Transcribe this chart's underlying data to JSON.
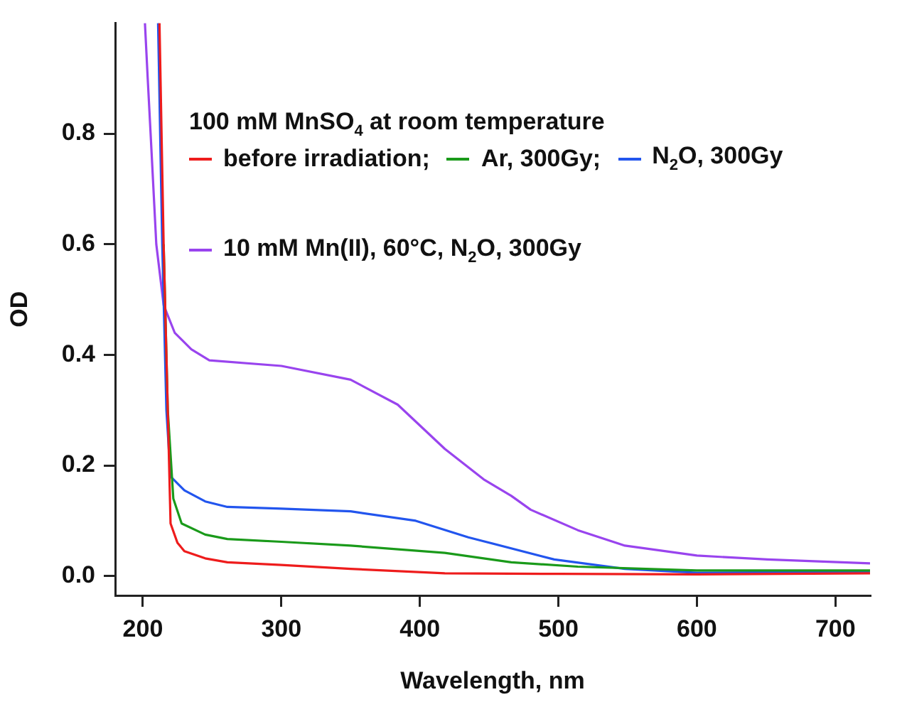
{
  "chart_data": {
    "type": "line",
    "xlabel": "Wavelength, nm",
    "ylabel": "OD",
    "annotations": [
      "100 mM MnSO$_{4}$ at room temperature"
    ],
    "xlim": [
      180,
      725
    ],
    "xticks": [
      200,
      300,
      400,
      500,
      600,
      700
    ],
    "ylim": [
      -0.035,
      1.0
    ],
    "yticks": [
      {
        "value": 0,
        "label": "0.0"
      },
      {
        "value": 0.2,
        "label": "0.2"
      },
      {
        "value": 0.4,
        "label": "0.4"
      },
      {
        "value": 0.6,
        "label": "0.6"
      },
      {
        "value": 0.8,
        "label": "0.8"
      }
    ],
    "legend": "top",
    "grid": false,
    "marker": "none",
    "line_style": "solid",
    "series": [
      {
        "name": "before irradiation;",
        "color": "#ee1c1c",
        "x": [
          212,
          215,
          218,
          220,
          225,
          230,
          245,
          261,
          300,
          350,
          418,
          500,
          600,
          725
        ],
        "values": [
          1.0,
          0.6,
          0.3,
          0.095,
          0.06,
          0.045,
          0.032,
          0.025,
          0.02,
          0.013,
          0.005,
          0.004,
          0.003,
          0.005
        ]
      },
      {
        "name": "Ar, 300Gy;",
        "color": "#1a9a1a",
        "x": [
          215,
          218,
          222,
          228,
          245,
          261,
          300,
          350,
          418,
          466,
          514,
          600,
          725
        ],
        "values": [
          0.6,
          0.3,
          0.14,
          0.095,
          0.075,
          0.067,
          0.062,
          0.055,
          0.042,
          0.025,
          0.017,
          0.01,
          0.01
        ]
      },
      {
        "name": "N$_{2}$O, 300Gy",
        "color": "#2255ee",
        "x": [
          211,
          214,
          217,
          220,
          230,
          245,
          261,
          300,
          350,
          397,
          435,
          446,
          497,
          548,
          600,
          725
        ],
        "values": [
          1.0,
          0.6,
          0.3,
          0.18,
          0.155,
          0.135,
          0.125,
          0.122,
          0.117,
          0.1,
          0.07,
          0.063,
          0.03,
          0.013,
          0.006,
          0.008
        ]
      },
      {
        "name": "10 mM Mn(II), 60°C, N$_{2}$O, 300Gy",
        "color": "#9944ee",
        "x": [
          201.5,
          203.5,
          205.6,
          209.7,
          215,
          223,
          235,
          248,
          300,
          350,
          384,
          418,
          446,
          466,
          480,
          514,
          548,
          600,
          651,
          725
        ],
        "values": [
          1.0,
          0.9,
          0.8,
          0.6,
          0.49,
          0.44,
          0.41,
          0.39,
          0.38,
          0.355,
          0.31,
          0.23,
          0.175,
          0.145,
          0.12,
          0.083,
          0.055,
          0.037,
          0.03,
          0.023
        ]
      }
    ]
  }
}
